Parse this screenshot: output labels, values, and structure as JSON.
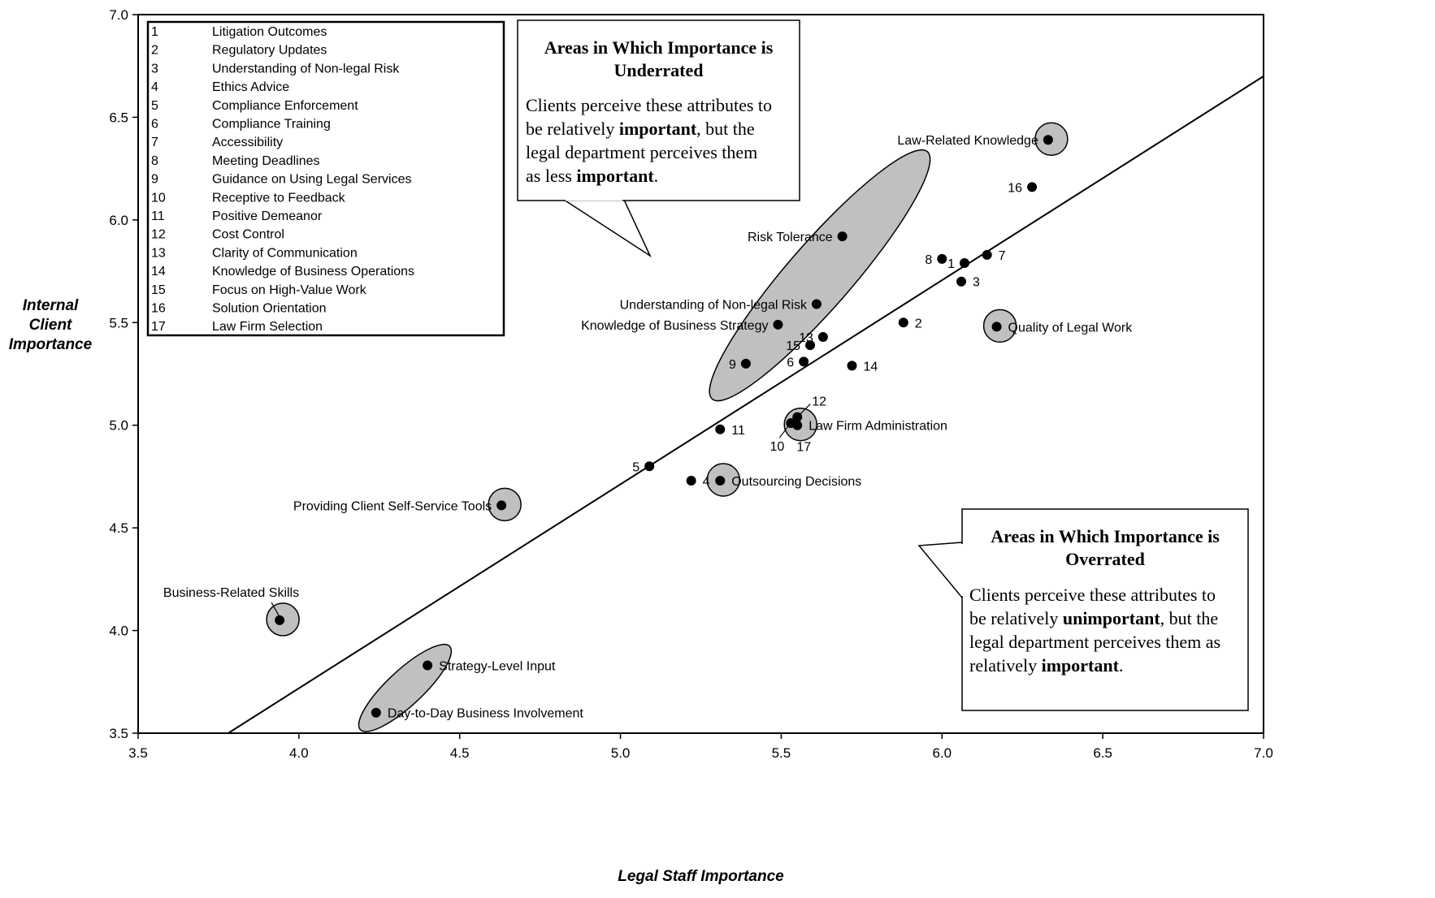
{
  "chart_data": {
    "type": "scatter",
    "xlabel": "Legal Staff Importance",
    "ylabel": "Internal Client Importance",
    "xlim": [
      3.5,
      7.0
    ],
    "ylim": [
      3.5,
      7.0
    ],
    "x_ticks": [
      "3.5",
      "4.0",
      "4.5",
      "5.0",
      "5.5",
      "6.0",
      "6.5",
      "7.0"
    ],
    "y_ticks": [
      "3.5",
      "4.0",
      "4.5",
      "5.0",
      "5.5",
      "6.0",
      "6.5",
      "7.0"
    ],
    "grid": false,
    "trend_line": {
      "from": [
        3.78,
        3.5
      ],
      "to": [
        7.0,
        6.7
      ]
    },
    "legend_placement": "top-left",
    "legend": [
      {
        "num": "1",
        "name": "Litigation Outcomes"
      },
      {
        "num": "2",
        "name": "Regulatory Updates"
      },
      {
        "num": "3",
        "name": "Understanding of Non-legal Risk"
      },
      {
        "num": "4",
        "name": "Ethics Advice"
      },
      {
        "num": "5",
        "name": "Compliance Enforcement"
      },
      {
        "num": "6",
        "name": "Compliance Training"
      },
      {
        "num": "7",
        "name": "Accessibility"
      },
      {
        "num": "8",
        "name": "Meeting Deadlines"
      },
      {
        "num": "9",
        "name": "Guidance on Using Legal Services"
      },
      {
        "num": "10",
        "name": "Receptive to Feedback"
      },
      {
        "num": "11",
        "name": "Positive Demeanor"
      },
      {
        "num": "12",
        "name": "Cost Control"
      },
      {
        "num": "13",
        "name": "Clarity of Communication"
      },
      {
        "num": "14",
        "name": "Knowledge of Business Operations"
      },
      {
        "num": "15",
        "name": "Focus on High-Value Work"
      },
      {
        "num": "16",
        "name": "Solution Orientation"
      },
      {
        "num": "17",
        "name": "Law Firm Selection"
      }
    ],
    "points": [
      {
        "label": "Law-Related Knowledge",
        "x": 6.33,
        "y": 6.39,
        "pos": "left",
        "highlight": true
      },
      {
        "label": "16",
        "x": 6.28,
        "y": 6.16,
        "pos": "left"
      },
      {
        "label": "Risk Tolerance",
        "x": 5.69,
        "y": 5.92,
        "pos": "left"
      },
      {
        "label": "8",
        "x": 6.0,
        "y": 5.81,
        "pos": "left"
      },
      {
        "label": "1",
        "x": 6.07,
        "y": 5.79,
        "pos": "left"
      },
      {
        "label": "7",
        "x": 6.14,
        "y": 5.83,
        "pos": "right"
      },
      {
        "label": "3",
        "x": 6.06,
        "y": 5.7,
        "pos": "right"
      },
      {
        "label": "Understanding of Non-legal Risk",
        "x": 5.61,
        "y": 5.59,
        "pos": "left"
      },
      {
        "label": "Knowledge of Business Strategy",
        "x": 5.49,
        "y": 5.49,
        "pos": "left"
      },
      {
        "label": "2",
        "x": 5.88,
        "y": 5.5,
        "pos": "right"
      },
      {
        "label": "Quality of Legal Work",
        "x": 6.17,
        "y": 5.48,
        "pos": "right",
        "highlight": true
      },
      {
        "label": "13",
        "x": 5.63,
        "y": 5.43,
        "pos": "left"
      },
      {
        "label": "15",
        "x": 5.59,
        "y": 5.39,
        "pos": "left"
      },
      {
        "label": "9",
        "x": 5.39,
        "y": 5.3,
        "pos": "left"
      },
      {
        "label": "6",
        "x": 5.57,
        "y": 5.31,
        "pos": "left"
      },
      {
        "label": "14",
        "x": 5.72,
        "y": 5.29,
        "pos": "right"
      },
      {
        "label": "12",
        "x": 5.55,
        "y": 5.04,
        "pos": "leader-up"
      },
      {
        "label": "10",
        "x": 5.53,
        "y": 5.01,
        "pos": "leader-down"
      },
      {
        "label": "Law Firm Administration",
        "x": 5.55,
        "y": 5.0,
        "pos": "right",
        "highlight": true
      },
      {
        "label": "17",
        "x": 5.55,
        "y": 5.0,
        "pos": "below",
        "hidden_marker": true
      },
      {
        "label": "11",
        "x": 5.31,
        "y": 4.98,
        "pos": "right"
      },
      {
        "label": "5",
        "x": 5.09,
        "y": 4.8,
        "pos": "left"
      },
      {
        "label": "4",
        "x": 5.22,
        "y": 4.73,
        "pos": "right"
      },
      {
        "label": "Outsourcing Decisions",
        "x": 5.31,
        "y": 4.73,
        "pos": "right",
        "highlight": true
      },
      {
        "label": "Providing Client Self-Service Tools",
        "x": 4.63,
        "y": 4.61,
        "pos": "left",
        "highlight": true
      },
      {
        "label": "Business-Related Skills",
        "x": 3.94,
        "y": 4.05,
        "pos": "above-left",
        "highlight": true
      },
      {
        "label": "Strategy-Level Input",
        "x": 4.4,
        "y": 3.83,
        "pos": "right"
      },
      {
        "label": "Day-to-Day Business Involvement",
        "x": 4.24,
        "y": 3.6,
        "pos": "right"
      }
    ],
    "highlight_ellipses": [
      {
        "about": "Risk Tolerance / Understanding of Non-legal Risk",
        "cx": 5.62,
        "cy": 5.73,
        "rx_data": 0.51,
        "ry_data": 0.1,
        "angle": -49
      },
      {
        "about": "Strategy-Level Input / Day-to-Day Business Involvement",
        "cx": 4.33,
        "cy": 3.72,
        "rx_data": 0.19,
        "ry_data": 0.055,
        "angle": -43
      }
    ],
    "callouts": [
      {
        "title": "Areas in Which Importance is Underrated",
        "title_lines": [
          "Areas in Which Importance is",
          "Underrated"
        ],
        "body_lines": [
          [
            {
              "t": "Clients perceive these attributes to"
            }
          ],
          [
            {
              "t": "be relatively "
            },
            {
              "t": "important",
              "b": true
            },
            {
              "t": ", but the"
            }
          ],
          [
            {
              "t": "legal department perceives them"
            }
          ],
          [
            {
              "t": "as less "
            },
            {
              "t": "important",
              "b": true
            },
            {
              "t": "."
            }
          ]
        ]
      },
      {
        "title": "Areas in Which Importance is Overrated",
        "title_lines": [
          "Areas in Which Importance is",
          "Overrated"
        ],
        "body_lines": [
          [
            {
              "t": "Clients perceive these attributes to"
            }
          ],
          [
            {
              "t": "be relatively "
            },
            {
              "t": "unimportant",
              "b": true
            },
            {
              "t": ", but the"
            }
          ],
          [
            {
              "t": "legal department perceives them as"
            }
          ],
          [
            {
              "t": "relatively "
            },
            {
              "t": "important",
              "b": true
            },
            {
              "t": "."
            }
          ]
        ]
      }
    ]
  }
}
